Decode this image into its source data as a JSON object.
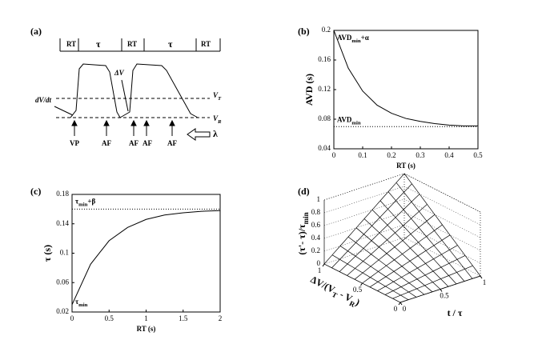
{
  "panel_labels": [
    "(a)",
    "(b)",
    "(c)",
    "(d)"
  ],
  "timing": {
    "header": [
      "RT",
      "τ",
      "RT",
      "τ",
      "RT"
    ],
    "slope_label": "dV/dt",
    "delta_label": "ΔV",
    "threshold": [
      {
        "text": "V"
      },
      {
        "sub": "T"
      }
    ],
    "reset": [
      {
        "text": "V"
      },
      {
        "sub": "R"
      }
    ],
    "input": "λ",
    "events": [
      "VP",
      "AF",
      "AF",
      "AF",
      "AF"
    ]
  },
  "chart_data": [
    {
      "type": "line",
      "color": "#000000",
      "x": [
        0,
        0.05,
        0.1,
        0.15,
        0.2,
        0.25,
        0.3,
        0.35,
        0.4,
        0.45,
        0.5
      ],
      "values": [
        0.2,
        0.149,
        0.118,
        0.099,
        0.088,
        0.081,
        0.077,
        0.074,
        0.072,
        0.071,
        0.071
      ],
      "xlabel": "RT (s)",
      "ylabel": "AVD (s)",
      "xlim": [
        0,
        0.5
      ],
      "xticks": [
        0,
        0.1,
        0.2,
        0.3,
        0.4,
        0.5
      ],
      "ylim": [
        0.04,
        0.2
      ],
      "yticks": [
        0.04,
        0.08,
        0.12,
        0.16,
        0.2
      ],
      "reference_line": 0.07,
      "annotations": [
        [
          {
            "text": "AVD"
          },
          {
            "sub": "min"
          },
          {
            "text": "+α"
          }
        ],
        [
          {
            "text": "AVD"
          },
          {
            "sub": "min"
          }
        ]
      ]
    },
    {
      "type": "line",
      "color": "#000000",
      "x": [
        0,
        0.25,
        0.5,
        0.75,
        1,
        1.25,
        1.5,
        1.75,
        2
      ],
      "values": [
        0.03,
        0.085,
        0.117,
        0.135,
        0.146,
        0.152,
        0.155,
        0.157,
        0.158
      ],
      "xlabel": "RT (s)",
      "ylabel": "τ (s)",
      "xlim": [
        0,
        2
      ],
      "xticks": [
        0,
        0.5,
        1,
        1.5,
        2
      ],
      "ylim": [
        0.02,
        0.18
      ],
      "yticks": [
        0.02,
        0.06,
        0.1,
        0.14,
        0.18
      ],
      "reference_line": 0.16,
      "annotations": [
        [
          {
            "text": "τ"
          },
          {
            "sub": "min"
          },
          {
            "text": "+β"
          }
        ],
        [
          {
            "text": "τ"
          },
          {
            "sub": "min"
          }
        ]
      ]
    },
    {
      "type": "surface",
      "color": "#000000",
      "x": [
        0,
        0.1,
        0.2,
        0.3,
        0.4,
        0.5,
        0.6,
        0.7,
        0.8,
        0.9,
        1
      ],
      "y": [
        0,
        0.1,
        0.2,
        0.3,
        0.4,
        0.5,
        0.6,
        0.7,
        0.8,
        0.9,
        1
      ],
      "z": [
        [
          0,
          0,
          0,
          0,
          0,
          0,
          0,
          0,
          0,
          0,
          0
        ],
        [
          0,
          0.01,
          0.02,
          0.03,
          0.04,
          0.05,
          0.06,
          0.07,
          0.08,
          0.09,
          0.1
        ],
        [
          0,
          0.02,
          0.04,
          0.06,
          0.08,
          0.1,
          0.12,
          0.14,
          0.16,
          0.18,
          0.2
        ],
        [
          0,
          0.03,
          0.06,
          0.09,
          0.12,
          0.15,
          0.18,
          0.21,
          0.24,
          0.27,
          0.3
        ],
        [
          0,
          0.04,
          0.08,
          0.12,
          0.16,
          0.2,
          0.24,
          0.28,
          0.32,
          0.36,
          0.4
        ],
        [
          0,
          0.05,
          0.1,
          0.15,
          0.2,
          0.25,
          0.3,
          0.35,
          0.4,
          0.45,
          0.5
        ],
        [
          0,
          0.06,
          0.12,
          0.18,
          0.24,
          0.3,
          0.36,
          0.42,
          0.48,
          0.54,
          0.6
        ],
        [
          0,
          0.07,
          0.14,
          0.21,
          0.28,
          0.35,
          0.42,
          0.49,
          0.56,
          0.63,
          0.7
        ],
        [
          0,
          0.08,
          0.16,
          0.24,
          0.32,
          0.4,
          0.48,
          0.56,
          0.64,
          0.72,
          0.8
        ],
        [
          0,
          0.09,
          0.18,
          0.27,
          0.36,
          0.45,
          0.54,
          0.63,
          0.72,
          0.81,
          0.9
        ],
        [
          0,
          0.1,
          0.2,
          0.3,
          0.4,
          0.5,
          0.6,
          0.7,
          0.8,
          0.9,
          1
        ]
      ],
      "xlabel": "t / τ",
      "ylabel": [
        {
          "text": "ΔV/(V"
        },
        {
          "sub": "T"
        },
        {
          "text": " - V"
        },
        {
          "sub": "R"
        },
        {
          "text": ")"
        }
      ],
      "zlabel": [
        {
          "text": "(τ'- τ)/τ"
        },
        {
          "sub": "min"
        }
      ],
      "xlim": [
        0,
        1
      ],
      "xticks": [
        0,
        0.5,
        1
      ],
      "ylim": [
        0,
        1
      ],
      "yticks": [
        0,
        0.5,
        1
      ],
      "zlim": [
        0,
        1
      ],
      "zticks": [
        0,
        0.2,
        0.4,
        0.6,
        0.8,
        1
      ]
    }
  ]
}
